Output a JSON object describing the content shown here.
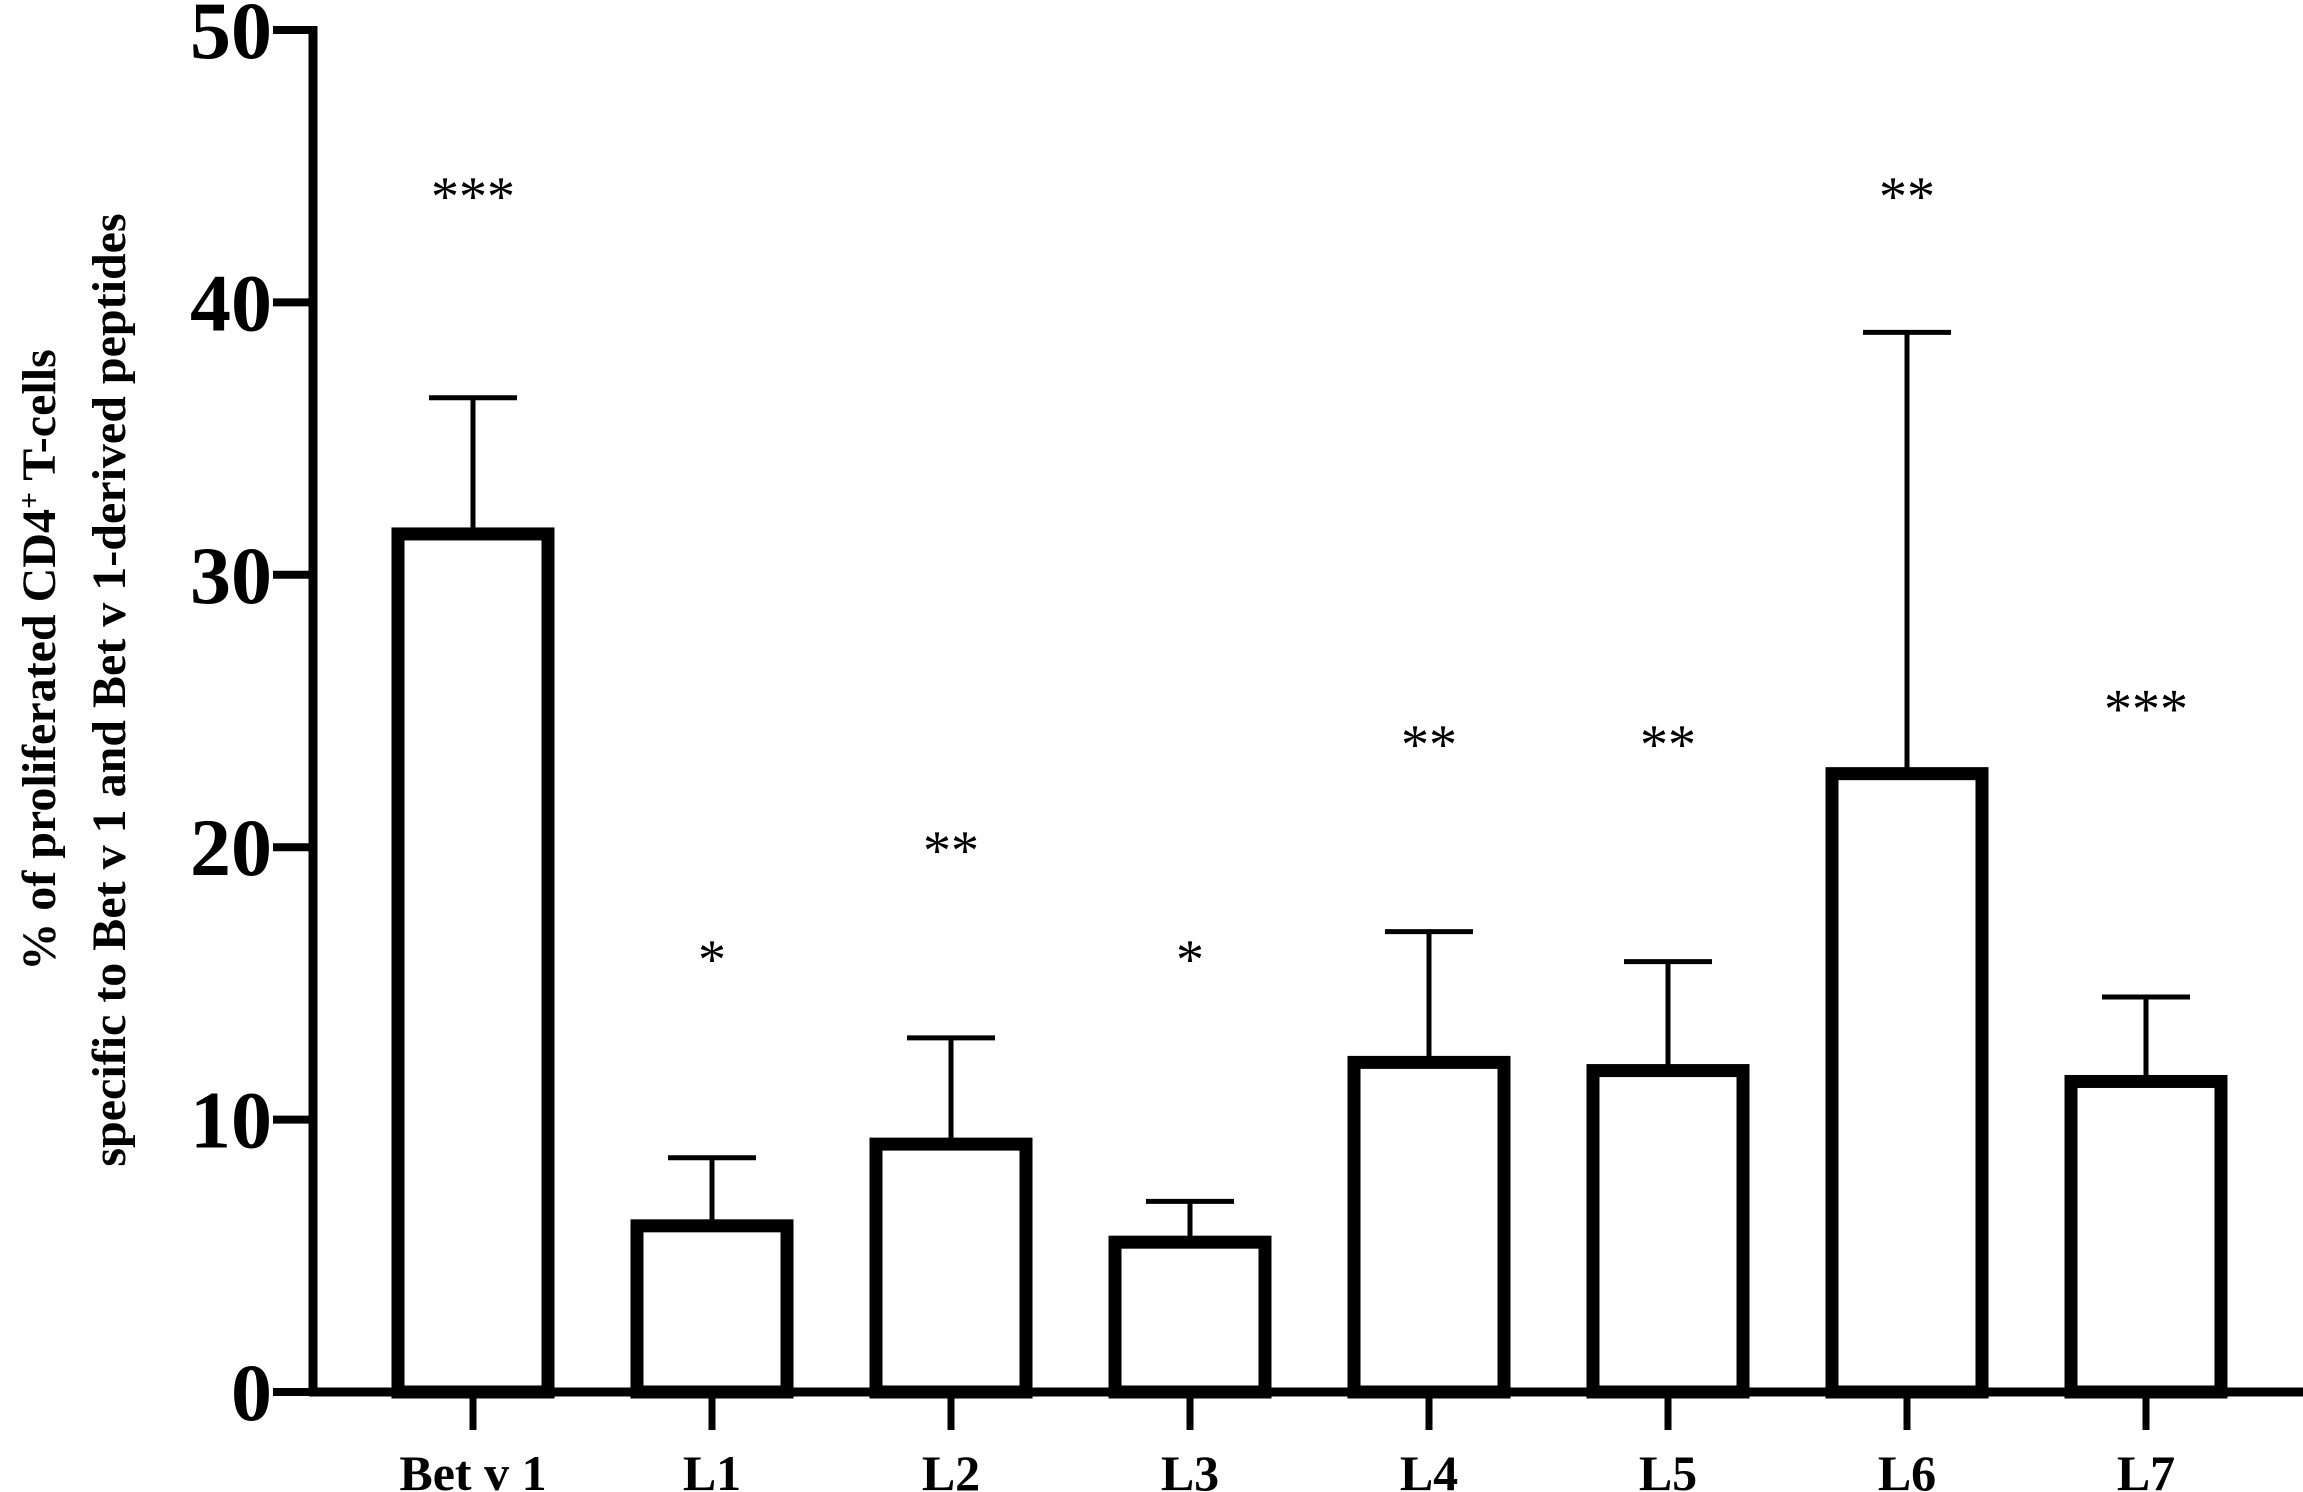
{
  "chart_data": {
    "type": "bar",
    "title": "",
    "xlabel": "",
    "ylabel": {
      "line1_prefix": "% of proliferated CD4",
      "line1_sup": "+",
      "line1_suffix": " T-cells",
      "line2": "specific to Bet v 1 and Bet v 1-derived peptides"
    },
    "ylim": [
      0,
      50
    ],
    "yticks": [
      "0",
      "10",
      "20",
      "30",
      "40",
      "50"
    ],
    "categories": [
      "Bet v 1",
      "L1",
      "L2",
      "L3",
      "L4",
      "L5",
      "L6",
      "L7"
    ],
    "values": [
      31.5,
      6.1,
      9.1,
      5.5,
      12.1,
      11.8,
      22.7,
      11.4
    ],
    "error_upper": [
      36.5,
      8.6,
      13.0,
      7.0,
      16.9,
      15.8,
      38.9,
      14.5
    ],
    "significance": [
      "***",
      "*",
      "**",
      "*",
      "**",
      "**",
      "**",
      "***"
    ],
    "significance_y": [
      43.2,
      15.2,
      19.2,
      15.2,
      23.1,
      23.1,
      43.2,
      24.4
    ],
    "bar_fill": "#ffffff",
    "line_color": "#000000",
    "grid": false,
    "legend": "none"
  }
}
